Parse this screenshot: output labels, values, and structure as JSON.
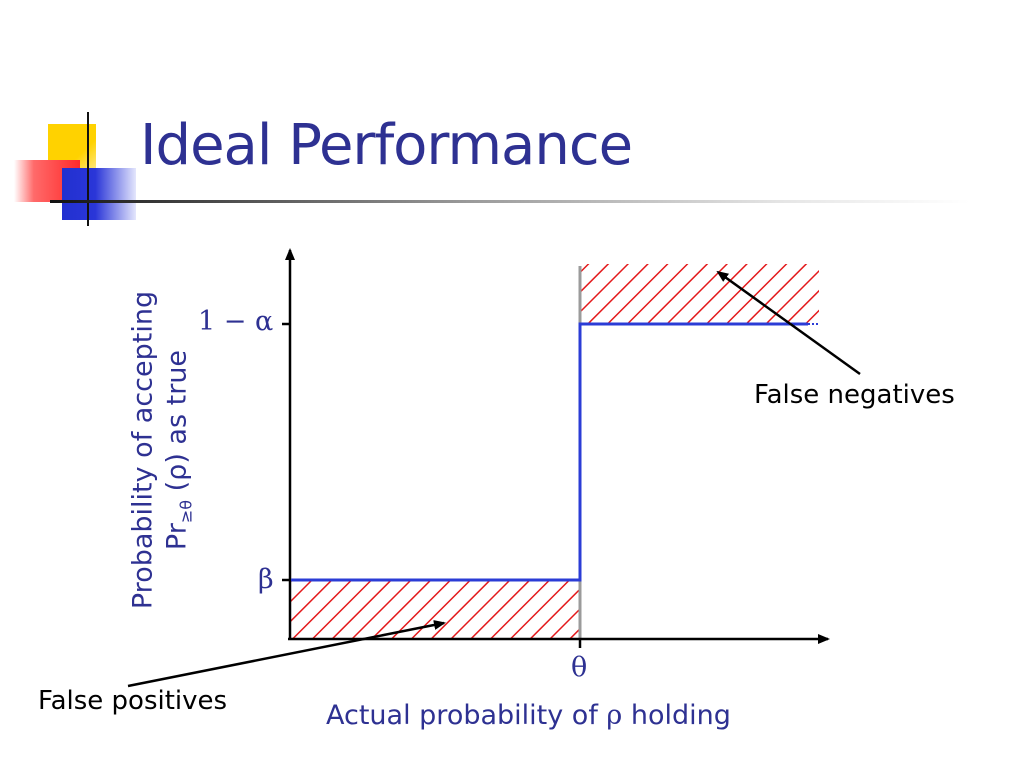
{
  "title": "Ideal Performance",
  "colors": {
    "title": "#2e3192",
    "curve": "#2b3cd6",
    "hatch": "#e31a1c",
    "axis": "#000000",
    "threshold_line": "#9b9b9b"
  },
  "chart_data": {
    "type": "line",
    "title": "",
    "xlabel_prefix": "Actual probability of ",
    "xlabel_symbol": "ρ",
    "xlabel_suffix": " holding",
    "ylabel_line1": "Probability of accepting",
    "ylabel_line2_prefix": "Pr",
    "ylabel_line2_sub": "≥θ",
    "ylabel_line2_suffix": " (ρ) as true",
    "x_tick_label": "θ",
    "y_tick_labels": {
      "low": "β",
      "high": "1 − α"
    },
    "series": [
      {
        "points": [
          {
            "x": "0",
            "y": "β"
          },
          {
            "x": "θ",
            "y": "β"
          },
          {
            "x": "θ",
            "y": "1 − α"
          },
          {
            "x": "1",
            "y": "1 − α"
          }
        ]
      }
    ],
    "shaded_regions": [
      "below β for x < θ",
      "above 1 − α for x > θ"
    ],
    "annotations": [
      {
        "text": "False negatives",
        "points_to": "shaded region above 1 − α"
      },
      {
        "text": "False positives",
        "points_to": "shaded region below β"
      }
    ]
  }
}
